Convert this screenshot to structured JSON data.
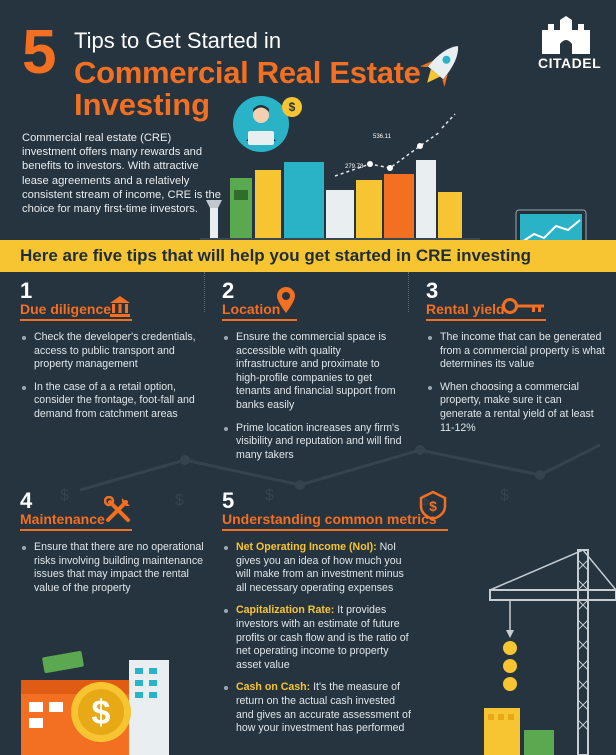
{
  "header": {
    "number": "5",
    "line1": "Tips to Get Started in",
    "line2": "Commercial Real Estate",
    "line3": "Investing",
    "intro": "Commercial real estate (CRE) investment offers many rewards and benefits to investors. With attractive lease agreements and a relatively consistent stream of income, CRE is the choice for many first-time investors.",
    "logo": "CITADEL",
    "chart_label_1": "279.78",
    "chart_label_2": "536.11"
  },
  "banner": "Here are five tips that will help you get started in CRE investing",
  "tips": [
    {
      "number": "1",
      "title": "Due diligence",
      "icon": "bank-icon",
      "bullets": [
        "Check the developer's credentials, access to public transport and property management",
        "In the case of a a retail option, consider the frontage, foot-fall and demand from catchment areas"
      ]
    },
    {
      "number": "2",
      "title": "Location",
      "icon": "map-pin-icon",
      "bullets": [
        "Ensure the commercial space is accessible with quality infrastructure and proximate to high-profile companies to get tenants and financial support from banks easily",
        "Prime location increases any firm's visibility and reputation and will find many takers"
      ]
    },
    {
      "number": "3",
      "title": "Rental yield",
      "icon": "key-icon",
      "bullets": [
        "The income that can be generated from a commercial property is what determines its value",
        "When choosing a commercial property, make sure it can generate a rental yield of at least 11-12%"
      ]
    },
    {
      "number": "4",
      "title": "Maintenance",
      "icon": "tools-icon",
      "bullets": [
        "Ensure that there are no operational risks involving building maintenance issues that may impact the rental value of the property"
      ]
    },
    {
      "number": "5",
      "title": "Understanding common metrics",
      "icon": "dollar-shield-icon",
      "metrics": [
        {
          "term": "Net Operating Income (NoI):",
          "text": " NoI gives you an idea of how much you will make from an investment minus all necessary operating expenses"
        },
        {
          "term": "Capitalization Rate:",
          "text": " It provides investors with an estimate of future profits or cash flow and is the ratio of net operating income to property asset value"
        },
        {
          "term": "Cash on Cash:",
          "text": " It's the measure of return on the actual cash invested and gives an accurate assessment of how your investment has performed"
        }
      ]
    }
  ],
  "colors": {
    "background": "#26343f",
    "accent_orange": "#f36f21",
    "accent_yellow": "#f7c531"
  }
}
